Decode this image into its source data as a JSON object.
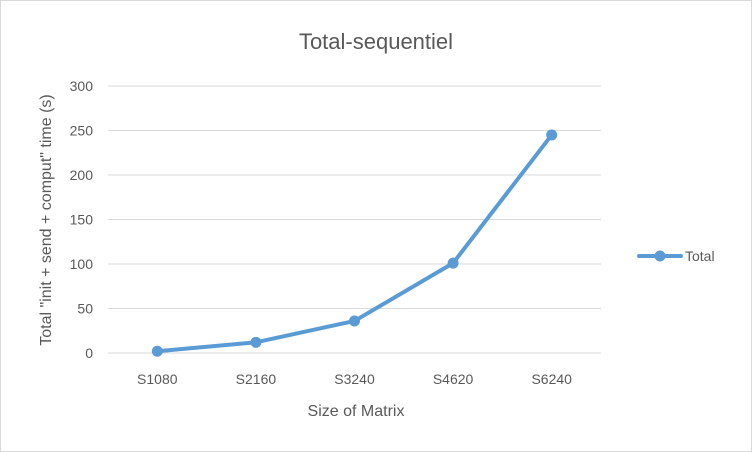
{
  "chart_data": {
    "type": "line",
    "title": "Total-sequentiel",
    "xlabel": "Size of Matrix",
    "ylabel": "Total \"init + send + comput\" time (s)",
    "categories": [
      "S1080",
      "S2160",
      "S3240",
      "S4620",
      "S6240"
    ],
    "ylim": [
      0,
      300
    ],
    "yticks": [
      0,
      50,
      100,
      150,
      200,
      250,
      300
    ],
    "grid": true,
    "legend": "right",
    "series": [
      {
        "name": "Total",
        "values": [
          2,
          12,
          36,
          101,
          245
        ],
        "color": "#5b9bd5",
        "marker": "circle"
      }
    ]
  }
}
